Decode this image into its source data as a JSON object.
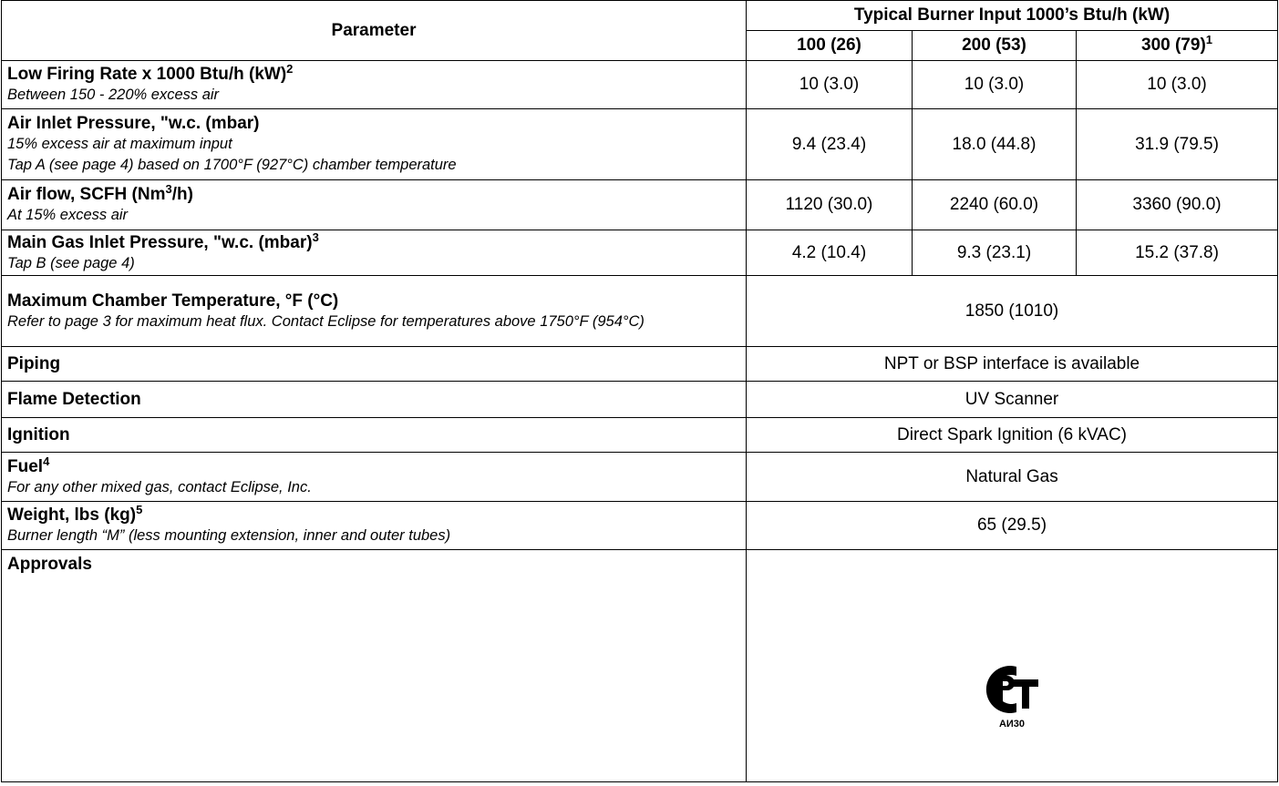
{
  "table": {
    "header": {
      "parameter": "Parameter",
      "group": "Typical Burner Input 1000’s Btu/h (kW)",
      "columns": [
        [
          "100 (26)"
        ],
        [
          "200 (53)"
        ],
        [
          "300 (79)",
          "1"
        ]
      ]
    },
    "rows": [
      {
        "name": [
          "Low Firing Rate x 1000 Btu/h (kW)",
          "2"
        ],
        "notes": [
          "Between 150 - 220% excess air"
        ],
        "values": [
          "10 (3.0)",
          "10 (3.0)",
          "10 (3.0)"
        ]
      },
      {
        "name": [
          "Air Inlet Pressure, \"w.c. (mbar)"
        ],
        "notes": [
          "15% excess air at maximum input",
          "Tap A (see page 4) based on 1700°F (927°C) chamber temperature"
        ],
        "values": [
          "9.4 (23.4)",
          "18.0 (44.8)",
          "31.9 (79.5)"
        ]
      },
      {
        "name": [
          "Air flow, SCFH (Nm",
          "3",
          "/h)"
        ],
        "notes": [
          "At 15% excess air"
        ],
        "values": [
          "1120 (30.0)",
          "2240 (60.0)",
          "3360 (90.0)"
        ]
      },
      {
        "name": [
          "Main Gas Inlet Pressure, \"w.c. (mbar)",
          "3"
        ],
        "notes": [
          "Tap B (see page 4)"
        ],
        "values": [
          "4.2 (10.4)",
          "9.3 (23.1)",
          "15.2 (37.8)"
        ]
      },
      {
        "name": [
          "Maximum Chamber Temperature, °F (°C)"
        ],
        "notes": [
          "Refer to page 3 for maximum heat flux. Contact Eclipse for temperatures above 1750°F (954°C)"
        ],
        "values": [
          "1850 (1010)"
        ]
      },
      {
        "name": [
          "Piping"
        ],
        "notes": [],
        "values": [
          "NPT or BSP interface is available"
        ]
      },
      {
        "name": [
          "Flame Detection"
        ],
        "notes": [],
        "values": [
          "UV Scanner"
        ]
      },
      {
        "name": [
          "Ignition"
        ],
        "notes": [],
        "values": [
          "Direct Spark Ignition (6 kVAC)"
        ]
      },
      {
        "name": [
          "Fuel",
          "4"
        ],
        "notes": [
          "For any other mixed gas, contact Eclipse, Inc."
        ],
        "values": [
          "Natural Gas"
        ]
      },
      {
        "name": [
          "Weight, lbs (kg)",
          "5"
        ],
        "notes": [
          "Burner length “M” (less mounting extension, inner and outer tubes)"
        ],
        "values": [
          "65 (29.5)"
        ]
      },
      {
        "name": [
          "Approvals"
        ],
        "notes": [],
        "logo": "АИ30"
      }
    ]
  }
}
